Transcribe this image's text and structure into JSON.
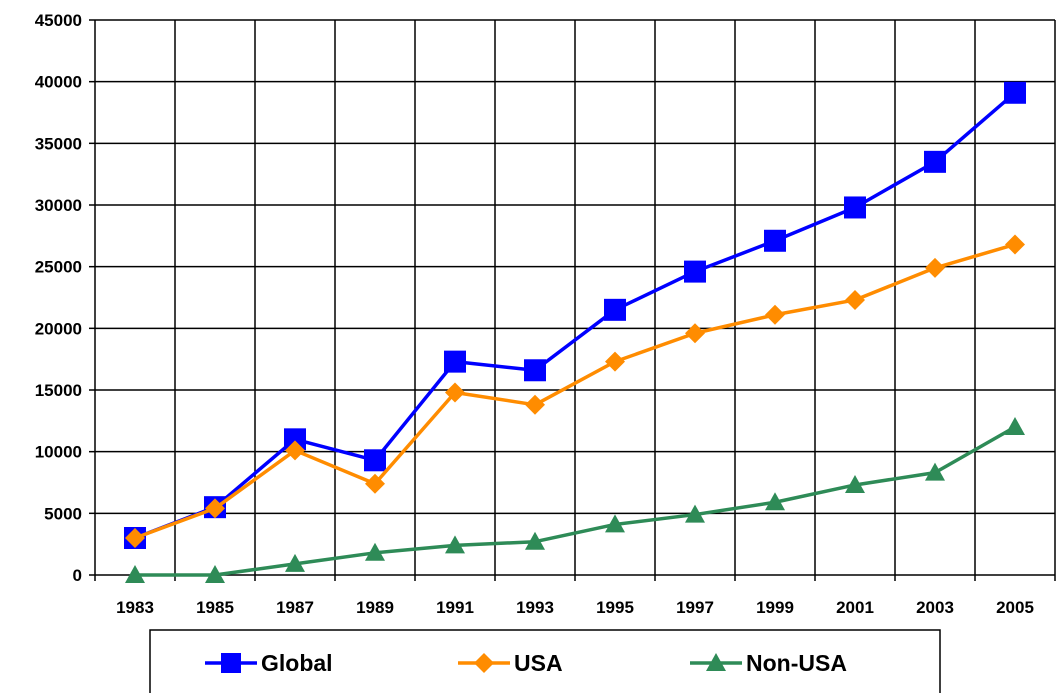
{
  "chart_data": {
    "type": "line",
    "title": "",
    "xlabel": "",
    "ylabel": "",
    "categories": [
      "1983",
      "1985",
      "1987",
      "1989",
      "1991",
      "1993",
      "1995",
      "1997",
      "1999",
      "2001",
      "2003",
      "2005"
    ],
    "ylim": [
      0,
      45000
    ],
    "yticks": [
      "0",
      "5000",
      "10000",
      "15000",
      "20000",
      "25000",
      "30000",
      "35000",
      "40000",
      "45000"
    ],
    "grid": true,
    "legend_position": "bottom",
    "series": [
      {
        "name": "Global",
        "color": "#0000ff",
        "marker": "square",
        "values": [
          3000,
          5500,
          11000,
          9300,
          17300,
          16600,
          21500,
          24600,
          27100,
          29800,
          33500,
          39100
        ]
      },
      {
        "name": "USA",
        "color": "#ff8c00",
        "marker": "diamond",
        "values": [
          3000,
          5400,
          10100,
          7400,
          14800,
          13800,
          17300,
          19600,
          21100,
          22300,
          24900,
          26800
        ]
      },
      {
        "name": "Non-USA",
        "color": "#2e8b57",
        "marker": "triangle",
        "values": [
          0,
          0,
          900,
          1800,
          2400,
          2700,
          4100,
          4900,
          5900,
          7300,
          8300,
          12000
        ]
      }
    ]
  }
}
